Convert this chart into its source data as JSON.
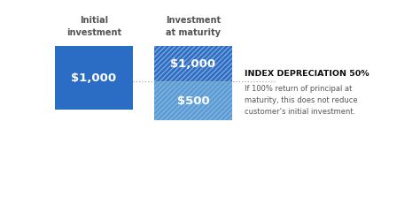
{
  "bg_color": "#ffffff",
  "label1": "Initial\ninvestment",
  "label2": "Investment\nat maturity",
  "box1_value": "$1,000",
  "box2_top_value": "$1,000",
  "box2_bottom_value": "$500",
  "box1_color": "#2b6cc4",
  "box2_top_color": "#2b6cc4",
  "box2_bottom_color": "#5b9bd5",
  "text_color": "#ffffff",
  "label_color": "#555555",
  "dot_line_color": "#aaaaaa",
  "annotation_title": "INDEX DEPRECIATION 50%",
  "annotation_body": "If 100% return of principal at\nmaturity, this does not reduce\ncustomer’s initial investment.",
  "annotation_title_color": "#111111",
  "annotation_body_color": "#555555",
  "annotation_title_fontsize": 6.8,
  "annotation_body_fontsize": 6.0,
  "label_fontsize": 7.0,
  "value_fontsize": 9.5
}
